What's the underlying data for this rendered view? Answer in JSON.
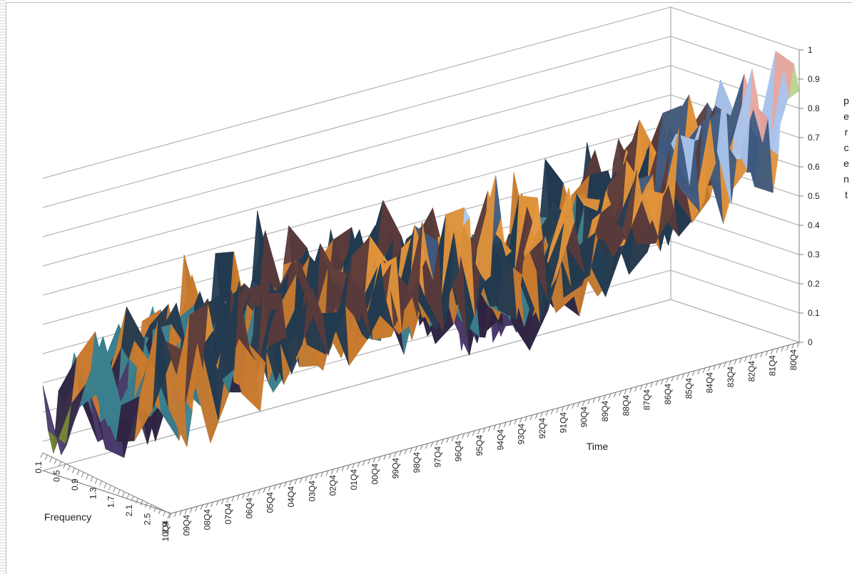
{
  "chart_data": {
    "type": "surface-3d",
    "title": "",
    "xlabel": "Time",
    "ylabel": "Frequency",
    "zlabel": "percent",
    "zlim": [
      0,
      1
    ],
    "z_ticks": [
      "0",
      "0.1",
      "0.2",
      "0.3",
      "0.4",
      "0.5",
      "0.6",
      "0.7",
      "0.8",
      "0.9",
      "1"
    ],
    "x_tick_labels": [
      "80Q4",
      "81Q4",
      "82Q4",
      "83Q4",
      "84Q4",
      "85Q4",
      "86Q4",
      "87Q4",
      "88Q4",
      "89Q4",
      "90Q4",
      "91Q4",
      "92Q4",
      "93Q4",
      "94Q4",
      "95Q4",
      "96Q4",
      "97Q4",
      "98Q4",
      "99Q4",
      "00Q4",
      "01Q4",
      "02Q4",
      "03Q4",
      "04Q4",
      "05Q4",
      "06Q4",
      "07Q4",
      "08Q4",
      "09Q4",
      "10Q4"
    ],
    "y_tick_labels": [
      "0.1",
      "0.5",
      "0.9",
      "1.3",
      "1.7",
      "2.1",
      "2.5",
      "2.9"
    ],
    "grid": true,
    "legend": "none",
    "band_colors": [
      "#7a2030",
      "#6b7d2e",
      "#4a3a6a",
      "#2f2440",
      "#3a7f8e",
      "#c87a2e",
      "#223a50",
      "#5a3a3a",
      "#e0923a",
      "#3e5a80",
      "#aac4ec",
      "#e8a6a0",
      "#b8d48c",
      "#b09ccc"
    ],
    "series_profile_by_year": [
      {
        "x": "80Q4",
        "values": [
          0.8,
          0.74,
          0.7,
          0.66,
          0.62,
          0.58,
          0.55,
          0.52
        ]
      },
      {
        "x": "85Q4",
        "values": [
          0.7,
          0.62,
          0.55,
          0.5,
          0.45,
          0.42,
          0.4,
          0.38
        ]
      },
      {
        "x": "90Q4",
        "values": [
          0.55,
          0.45,
          0.38,
          0.32,
          0.28,
          0.25,
          0.22,
          0.2
        ]
      },
      {
        "x": "95Q4",
        "values": [
          0.6,
          0.55,
          0.5,
          0.48,
          0.45,
          0.42,
          0.4,
          0.38
        ]
      },
      {
        "x": "00Q4",
        "values": [
          0.55,
          0.5,
          0.47,
          0.45,
          0.43,
          0.42,
          0.41,
          0.4
        ]
      },
      {
        "x": "05Q4",
        "values": [
          0.5,
          0.45,
          0.42,
          0.4,
          0.38,
          0.36,
          0.35,
          0.34
        ]
      },
      {
        "x": "10Q4",
        "values": [
          0.45,
          0.4,
          0.35,
          0.3,
          0.28,
          0.25,
          0.22,
          0.2
        ]
      }
    ]
  }
}
